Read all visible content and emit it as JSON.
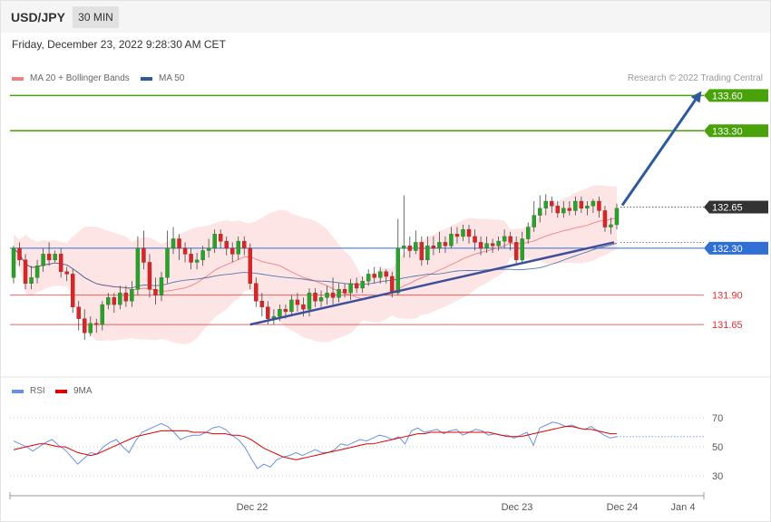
{
  "header": {
    "symbol": "USD/JPY",
    "timeframe": "30 MIN"
  },
  "datetime": "Friday, December 23, 2022 9:28:30 AM CET",
  "legend": {
    "ma20_label": "MA 20 + Bollinger Bands",
    "ma20_color": "#f08080",
    "ma50_label": "MA 50",
    "ma50_color": "#2e5a9c",
    "copyright": "Research © 2022 Trading Central"
  },
  "rsi_legend": {
    "rsi_label": "RSI",
    "rsi_color": "#6a8fe0",
    "ma9_label": "9MA",
    "ma9_color": "#e00000"
  },
  "chart_data": [
    {
      "type": "candlestick",
      "ylim": [
        131.25,
        133.68
      ],
      "current_price": "132.65",
      "x_ticks": [
        "Dec 22",
        "Dec 23",
        "Dec 24",
        "Jan 4"
      ],
      "levels": [
        {
          "value": 133.6,
          "label": "133.60",
          "kind": "resistance-target",
          "color": "#4aa20a"
        },
        {
          "value": 133.3,
          "label": "133.30",
          "kind": "resistance",
          "color": "#4aa20a"
        },
        {
          "value": 132.3,
          "label": "132.30",
          "kind": "pivot",
          "color": "#2f6fd6"
        },
        {
          "value": 131.9,
          "label": "131.90",
          "kind": "support",
          "color": "#e53030"
        },
        {
          "value": 131.65,
          "label": "131.65",
          "kind": "support",
          "color": "#e53030"
        }
      ],
      "trend_arrow": {
        "from_price": 132.65,
        "to_price": 133.6,
        "color": "#2e5a9c"
      },
      "candles": [
        [
          132.05,
          132.3,
          132.0,
          132.32
        ],
        [
          132.3,
          132.2,
          132.15,
          132.35
        ],
        [
          132.2,
          132.0,
          131.95,
          132.25
        ],
        [
          132.0,
          132.05,
          131.95,
          132.15
        ],
        [
          132.05,
          132.15,
          132.0,
          132.2
        ],
        [
          132.15,
          132.25,
          132.1,
          132.3
        ],
        [
          132.25,
          132.2,
          132.15,
          132.35
        ],
        [
          132.2,
          132.25,
          132.18,
          132.28
        ],
        [
          132.25,
          132.1,
          132.05,
          132.3
        ],
        [
          132.1,
          132.08,
          132.02,
          132.14
        ],
        [
          132.08,
          131.8,
          131.75,
          132.12
        ],
        [
          131.8,
          131.7,
          131.6,
          131.85
        ],
        [
          131.7,
          131.58,
          131.52,
          131.78
        ],
        [
          131.58,
          131.66,
          131.55,
          131.72
        ],
        [
          131.66,
          131.65,
          131.58,
          131.7
        ],
        [
          131.65,
          131.82,
          131.6,
          131.85
        ],
        [
          131.82,
          131.88,
          131.78,
          131.92
        ],
        [
          131.88,
          131.82,
          131.75,
          131.92
        ],
        [
          131.82,
          131.92,
          131.78,
          131.98
        ],
        [
          131.92,
          131.85,
          131.8,
          131.98
        ],
        [
          131.85,
          131.95,
          131.8,
          132.02
        ],
        [
          131.95,
          132.3,
          131.9,
          132.4
        ],
        [
          132.3,
          132.18,
          132.12,
          132.45
        ],
        [
          132.18,
          131.95,
          131.88,
          132.25
        ],
        [
          131.95,
          131.9,
          131.82,
          132.05
        ],
        [
          131.9,
          132.05,
          131.85,
          132.1
        ],
        [
          132.05,
          132.3,
          132.0,
          132.45
        ],
        [
          132.3,
          132.38,
          132.25,
          132.48
        ],
        [
          132.38,
          132.3,
          132.2,
          132.42
        ],
        [
          132.3,
          132.25,
          132.18,
          132.35
        ],
        [
          132.25,
          132.18,
          132.12,
          132.3
        ],
        [
          132.18,
          132.2,
          132.12,
          132.26
        ],
        [
          132.2,
          132.28,
          132.15,
          132.32
        ],
        [
          132.28,
          132.3,
          132.22,
          132.38
        ],
        [
          132.3,
          132.42,
          132.26,
          132.46
        ],
        [
          132.42,
          132.36,
          132.3,
          132.46
        ],
        [
          132.36,
          132.3,
          132.24,
          132.4
        ],
        [
          132.3,
          132.25,
          132.18,
          132.35
        ],
        [
          132.25,
          132.36,
          132.2,
          132.4
        ],
        [
          132.36,
          132.3,
          132.24,
          132.4
        ],
        [
          132.3,
          132.0,
          131.95,
          132.34
        ],
        [
          132.0,
          131.85,
          131.8,
          132.05
        ],
        [
          131.85,
          131.8,
          131.72,
          131.92
        ],
        [
          131.8,
          131.7,
          131.65,
          131.85
        ],
        [
          131.7,
          131.72,
          131.65,
          131.78
        ],
        [
          131.72,
          131.78,
          131.68,
          131.82
        ],
        [
          131.78,
          131.76,
          131.7,
          131.82
        ],
        [
          131.76,
          131.86,
          131.72,
          131.9
        ],
        [
          131.86,
          131.82,
          131.76,
          131.92
        ],
        [
          131.82,
          131.78,
          131.72,
          131.88
        ],
        [
          131.78,
          131.92,
          131.72,
          131.96
        ],
        [
          131.92,
          131.85,
          131.8,
          131.96
        ],
        [
          131.85,
          131.88,
          131.8,
          131.94
        ],
        [
          131.88,
          131.92,
          131.82,
          131.98
        ],
        [
          131.92,
          131.88,
          131.82,
          132.05
        ],
        [
          131.88,
          131.95,
          131.84,
          132.0
        ],
        [
          131.95,
          131.92,
          131.88,
          132.0
        ],
        [
          131.92,
          132.0,
          131.86,
          132.04
        ],
        [
          132.0,
          131.96,
          131.92,
          132.05
        ],
        [
          131.96,
          132.02,
          131.92,
          132.06
        ],
        [
          132.02,
          132.08,
          131.98,
          132.12
        ],
        [
          132.08,
          132.05,
          132.0,
          132.14
        ],
        [
          132.05,
          132.1,
          132.0,
          132.14
        ],
        [
          132.1,
          132.06,
          132.0,
          132.12
        ],
        [
          132.06,
          131.92,
          131.88,
          132.1
        ],
        [
          131.92,
          132.3,
          131.9,
          132.55
        ],
        [
          132.3,
          132.32,
          132.22,
          132.75
        ],
        [
          132.32,
          132.28,
          132.22,
          132.4
        ],
        [
          132.28,
          132.35,
          132.25,
          132.45
        ],
        [
          132.35,
          132.2,
          132.15,
          132.4
        ],
        [
          132.2,
          132.32,
          132.16,
          132.4
        ],
        [
          132.32,
          132.3,
          132.24,
          132.4
        ],
        [
          132.3,
          132.35,
          132.26,
          132.44
        ],
        [
          132.35,
          132.32,
          132.26,
          132.4
        ],
        [
          132.32,
          132.42,
          132.3,
          132.48
        ],
        [
          132.42,
          132.4,
          132.34,
          132.48
        ],
        [
          132.4,
          132.46,
          132.36,
          132.5
        ],
        [
          132.46,
          132.4,
          132.34,
          132.5
        ],
        [
          132.4,
          132.35,
          132.28,
          132.46
        ],
        [
          132.35,
          132.3,
          132.24,
          132.4
        ],
        [
          132.3,
          132.34,
          132.26,
          132.4
        ],
        [
          132.34,
          132.32,
          132.26,
          132.38
        ],
        [
          132.32,
          132.36,
          132.28,
          132.4
        ],
        [
          132.36,
          132.4,
          132.3,
          132.46
        ],
        [
          132.4,
          132.35,
          132.28,
          132.44
        ],
        [
          132.35,
          132.2,
          132.16,
          132.4
        ],
        [
          132.2,
          132.38,
          132.18,
          132.44
        ],
        [
          132.38,
          132.48,
          132.34,
          132.52
        ],
        [
          132.48,
          132.58,
          132.44,
          132.7
        ],
        [
          132.58,
          132.64,
          132.52,
          132.75
        ],
        [
          132.64,
          132.7,
          132.58,
          132.76
        ],
        [
          132.7,
          132.66,
          132.6,
          132.74
        ],
        [
          132.66,
          132.6,
          132.56,
          132.7
        ],
        [
          132.6,
          132.64,
          132.56,
          132.7
        ],
        [
          132.64,
          132.62,
          132.58,
          132.7
        ],
        [
          132.62,
          132.7,
          132.58,
          132.74
        ],
        [
          132.7,
          132.64,
          132.6,
          132.74
        ],
        [
          132.64,
          132.66,
          132.58,
          132.7
        ],
        [
          132.66,
          132.7,
          132.6,
          132.72
        ],
        [
          132.7,
          132.62,
          132.56,
          132.74
        ],
        [
          132.62,
          132.48,
          132.44,
          132.66
        ],
        [
          132.48,
          132.5,
          132.42,
          132.56
        ],
        [
          132.5,
          132.64,
          132.46,
          132.68
        ]
      ]
    },
    {
      "type": "line",
      "title": "RSI",
      "ylim": [
        20,
        80
      ],
      "y_ticks": [
        30,
        50,
        70
      ],
      "series": [
        {
          "name": "RSI",
          "values": [
            54,
            52,
            50,
            47,
            50,
            53,
            55,
            51,
            48,
            43,
            38,
            42,
            46,
            45,
            50,
            53,
            55,
            50,
            46,
            54,
            60,
            62,
            64,
            66,
            64,
            60,
            55,
            57,
            58,
            58,
            60,
            63,
            64,
            62,
            58,
            55,
            50,
            42,
            35,
            38,
            36,
            41,
            43,
            44,
            46,
            44,
            46,
            48,
            46,
            46,
            48,
            52,
            51,
            53,
            55,
            54,
            56,
            58,
            57,
            55,
            57,
            52,
            61,
            63,
            60,
            61,
            62,
            59,
            61,
            62,
            58,
            60,
            62,
            61,
            58,
            59,
            58,
            58,
            56,
            58,
            60,
            51,
            63,
            65,
            67,
            66,
            64,
            65,
            63,
            62,
            64,
            61,
            58,
            56,
            57
          ]
        },
        {
          "name": "9MA",
          "values": [
            48,
            49,
            50,
            51,
            52,
            52,
            51,
            50,
            50,
            48,
            46,
            45,
            44,
            45,
            47,
            49,
            51,
            53,
            55,
            57,
            58,
            59,
            60,
            61,
            61,
            61,
            61,
            61,
            60,
            60,
            60,
            59,
            59,
            59,
            58,
            58,
            57,
            55,
            52,
            49,
            47,
            45,
            43,
            42,
            41,
            42,
            43,
            44,
            45,
            46,
            47,
            48,
            49,
            50,
            51,
            52,
            52,
            53,
            54,
            55,
            56,
            57,
            58,
            59,
            59,
            60,
            60,
            60,
            60,
            60,
            60,
            60,
            60,
            60,
            60,
            59,
            58,
            57,
            57,
            57,
            58,
            59,
            60,
            61,
            62,
            63,
            64,
            64,
            63,
            62,
            62,
            61,
            60,
            59,
            59
          ]
        }
      ]
    }
  ]
}
